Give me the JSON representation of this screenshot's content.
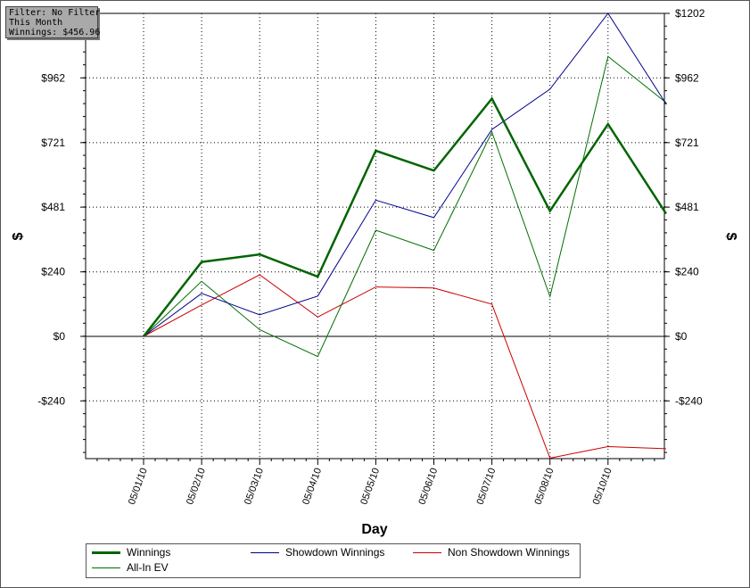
{
  "filter_box": {
    "line1": "Filter: No Filter",
    "line2": "This Month",
    "line3": "Winnings: $456.96"
  },
  "legend": {
    "items": [
      {
        "label": "Winnings",
        "color": "#006400",
        "bold": true
      },
      {
        "label": "Showdown Winnings",
        "color": "#00008b",
        "bold": false
      },
      {
        "label": "Non Showdown Winnings",
        "color": "#cc0000",
        "bold": false
      },
      {
        "label": "All-In EV",
        "color": "#007000",
        "bold": false
      }
    ]
  },
  "chart_data": {
    "type": "line",
    "xlabel": "Day",
    "ylabel": "$",
    "ylabel_right": "$",
    "categories": [
      "05/01/10",
      "05/02/10",
      "05/03/10",
      "05/04/10",
      "05/05/10",
      "05/06/10",
      "05/07/10",
      "05/08/10",
      "05/10/10",
      ""
    ],
    "x_tick_labels": [
      "05/01/10",
      "05/02/10",
      "05/03/10",
      "05/04/10",
      "05/05/10",
      "05/06/10",
      "05/07/10",
      "05/08/10",
      "05/10/10"
    ],
    "y_ticks": [
      -240,
      0,
      240,
      481,
      721,
      962,
      1202
    ],
    "y_tick_labels": [
      "-$240",
      "$0",
      "$240",
      "$481",
      "$721",
      "$962",
      "$1202"
    ],
    "ylim": [
      -450,
      1202
    ],
    "grid": true,
    "legend_position": "bottom",
    "series": [
      {
        "name": "Winnings",
        "color": "#006400",
        "values": [
          0,
          277,
          305,
          222,
          691,
          617,
          885,
          467,
          790,
          457
        ]
      },
      {
        "name": "Showdown Winnings",
        "color": "#00008b",
        "values": [
          0,
          160,
          80,
          150,
          507,
          442,
          770,
          920,
          1202,
          865
        ]
      },
      {
        "name": "Non Showdown Winnings",
        "color": "#cc0000",
        "values": [
          0,
          117,
          229,
          72,
          184,
          180,
          120,
          -453,
          -410,
          -418
        ]
      },
      {
        "name": "All-In EV",
        "color": "#007000",
        "values": [
          0,
          205,
          25,
          -75,
          395,
          320,
          760,
          148,
          1042,
          870
        ]
      }
    ]
  }
}
